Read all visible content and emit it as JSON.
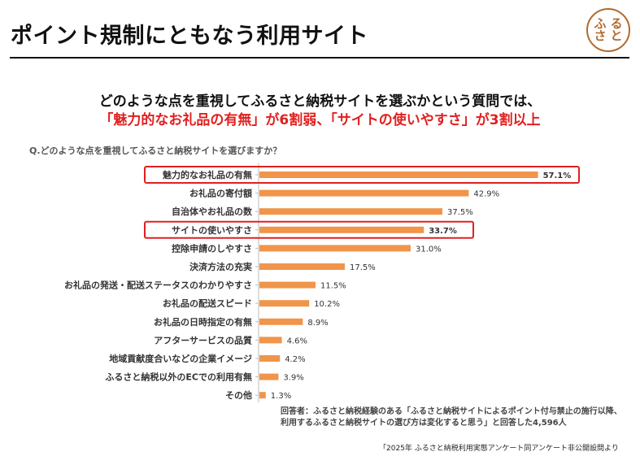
{
  "title": "ポイント規制にともなう利用サイト",
  "logo": {
    "chars": [
      "ふ",
      "る",
      "さ",
      "と"
    ]
  },
  "headline": {
    "line1": "どのような点を重視してふるさと納税サイトを選ぶかという質問では、",
    "line2": "「魅力的なお礼品の有無」が6割弱、「サイトの使いやすさ」が3割以上"
  },
  "question": "Q.どのような点を重視してふるさと納税サイトを選びますか？",
  "respondent": {
    "line1": "回答者：ふるさと納税経験のある「ふるさと納税サイトによるポイント付与禁止の施行以降、",
    "line2": "利用するふるさと納税サイトの選び方は変化すると思う」と回答した4,596人"
  },
  "source": "「2025年 ふるさと納税利用実態アンケート同アンケート非公開設問より",
  "colors": {
    "bar": "#f0954a",
    "highlight_box": "#e02020",
    "axis": "#bbbbbb"
  },
  "chart_data": {
    "type": "bar",
    "orientation": "horizontal",
    "categories": [
      "魅力的なお礼品の有無",
      "お礼品の寄付額",
      "自治体やお礼品の数",
      "サイトの使いやすさ",
      "控除申請のしやすさ",
      "決済方法の充実",
      "お礼品の発送・配送ステータスのわかりやすさ",
      "お礼品の配送スピード",
      "お礼品の日時指定の有無",
      "アフターサービスの品質",
      "地域貢献度合いなどの企業イメージ",
      "ふるさと納税以外のECでの利用有無",
      "その他"
    ],
    "values": [
      57.1,
      42.9,
      37.5,
      33.7,
      31.0,
      17.5,
      11.5,
      10.2,
      8.9,
      4.6,
      4.2,
      3.9,
      1.3
    ],
    "value_labels": [
      "57.1%",
      "42.9%",
      "37.5%",
      "33.7%",
      "31.0%",
      "17.5%",
      "11.5%",
      "10.2%",
      "8.9%",
      "4.6%",
      "4.2%",
      "3.9%",
      "1.3%"
    ],
    "highlighted": [
      0,
      3
    ],
    "xlim": [
      0,
      60
    ],
    "grid": false,
    "legend": "none"
  }
}
